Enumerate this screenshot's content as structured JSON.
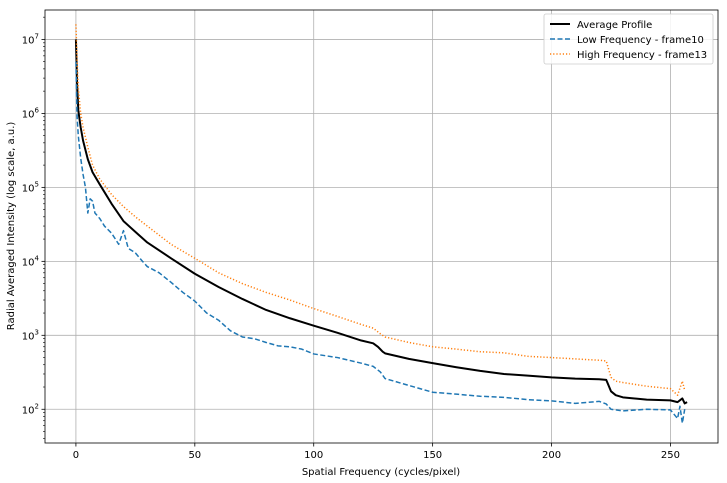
{
  "chart_data": {
    "type": "line",
    "title": "",
    "xlabel": "Spatial Frequency (cycles/pixel)",
    "ylabel": "Radial Averaged Intensity (log scale, a.u.)",
    "xlim": [
      -13,
      270
    ],
    "ylim": [
      35,
      25000000
    ],
    "yscale": "log",
    "grid": true,
    "legend_position": "top-right",
    "x_ticks": [
      0,
      50,
      100,
      150,
      200,
      250
    ],
    "x_tick_labels": [
      "0",
      "50",
      "100",
      "150",
      "200",
      "250"
    ],
    "y_ticks": [
      100,
      1000,
      10000,
      100000,
      1000000,
      10000000
    ],
    "y_tick_labels": [
      {
        "base": "10",
        "exp": "2"
      },
      {
        "base": "10",
        "exp": "3"
      },
      {
        "base": "10",
        "exp": "4"
      },
      {
        "base": "10",
        "exp": "5"
      },
      {
        "base": "10",
        "exp": "6"
      },
      {
        "base": "10",
        "exp": "7"
      }
    ],
    "series": [
      {
        "name": "Average Profile",
        "color": "#000000",
        "style": "solid",
        "x": [
          0,
          0.5,
          1,
          2,
          3,
          5,
          7,
          10,
          15,
          20,
          25,
          30,
          40,
          50,
          60,
          70,
          80,
          90,
          100,
          110,
          120,
          125,
          127,
          129,
          130,
          140,
          150,
          160,
          170,
          180,
          190,
          200,
          210,
          220,
          223,
          225,
          227,
          230,
          240,
          250,
          253,
          255,
          256,
          257
        ],
        "y": [
          10000000,
          2500000,
          1100000,
          650000,
          430000,
          240000,
          160000,
          110000,
          60000,
          35000,
          25000,
          18000,
          11000,
          6800,
          4500,
          3100,
          2200,
          1700,
          1350,
          1080,
          850,
          780,
          700,
          600,
          570,
          480,
          420,
          370,
          330,
          300,
          285,
          270,
          260,
          255,
          250,
          175,
          155,
          145,
          135,
          132,
          125,
          140,
          120,
          125
        ]
      },
      {
        "name": "Low Frequency - frame10",
        "color": "#1f77b4",
        "style": "dashed",
        "x": [
          0,
          0.5,
          1,
          2,
          3,
          4,
          5,
          6,
          7,
          8,
          10,
          12,
          15,
          18,
          20,
          22,
          25,
          28,
          30,
          35,
          40,
          45,
          50,
          55,
          60,
          65,
          70,
          75,
          80,
          85,
          90,
          95,
          100,
          110,
          120,
          125,
          128,
          130,
          140,
          150,
          160,
          170,
          180,
          190,
          200,
          210,
          220,
          223,
          225,
          230,
          240,
          250,
          253,
          254,
          255,
          256
        ],
        "y": [
          5000000,
          900000,
          500000,
          250000,
          150000,
          100000,
          45000,
          70000,
          65000,
          45000,
          38000,
          30000,
          24000,
          17000,
          26000,
          15000,
          13000,
          10000,
          8500,
          7000,
          5200,
          3800,
          2900,
          2000,
          1600,
          1150,
          950,
          900,
          800,
          720,
          700,
          650,
          560,
          500,
          420,
          380,
          320,
          260,
          210,
          170,
          160,
          150,
          145,
          135,
          130,
          120,
          128,
          118,
          100,
          95,
          100,
          98,
          75,
          110,
          65,
          100
        ]
      },
      {
        "name": "High Frequency - frame13",
        "color": "#ff7f0e",
        "style": "dotted",
        "x": [
          0,
          0.5,
          1,
          2,
          3,
          5,
          7,
          10,
          15,
          20,
          25,
          30,
          40,
          50,
          60,
          70,
          80,
          90,
          100,
          110,
          120,
          125,
          128,
          130,
          140,
          150,
          160,
          170,
          180,
          190,
          200,
          210,
          220,
          223,
          225,
          227,
          230,
          240,
          250,
          253,
          255,
          256
        ],
        "y": [
          16000000,
          5000000,
          2200000,
          1000000,
          650000,
          350000,
          200000,
          130000,
          80000,
          55000,
          40000,
          30000,
          17000,
          11000,
          7000,
          5000,
          3800,
          3000,
          2300,
          1800,
          1400,
          1250,
          1050,
          950,
          800,
          700,
          650,
          600,
          580,
          520,
          500,
          480,
          460,
          450,
          270,
          240,
          230,
          205,
          190,
          155,
          240,
          180
        ]
      }
    ]
  }
}
